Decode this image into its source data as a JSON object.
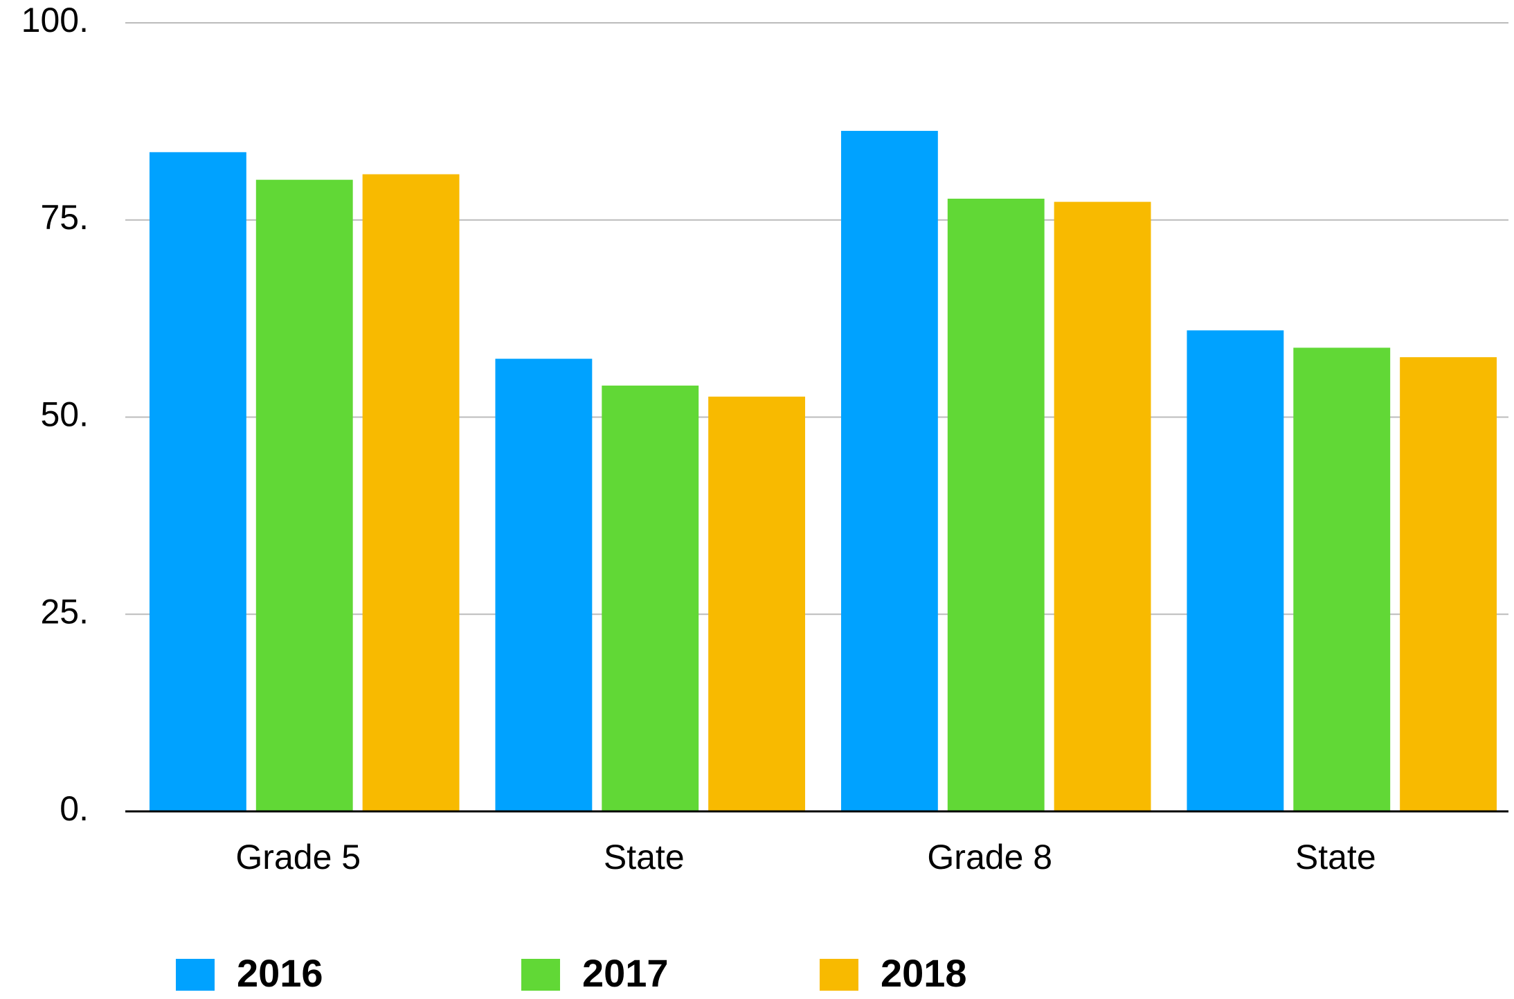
{
  "chart_data": {
    "type": "bar",
    "categories": [
      "Grade 5",
      "State",
      "Grade 8",
      "State"
    ],
    "series": [
      {
        "name": "2016",
        "color": "#00a2ff",
        "values": [
          83.6,
          57.4,
          86.3,
          61.0
        ]
      },
      {
        "name": "2017",
        "color": "#61d836",
        "values": [
          80.1,
          54.0,
          77.7,
          58.8
        ]
      },
      {
        "name": "2018",
        "color": "#f8ba00",
        "values": [
          80.8,
          52.6,
          77.3,
          57.6
        ]
      }
    ],
    "ylim": [
      0,
      100
    ],
    "yticks": [
      {
        "value": 0,
        "label": "0."
      },
      {
        "value": 25,
        "label": "25."
      },
      {
        "value": 50,
        "label": "50."
      },
      {
        "value": 75,
        "label": "75."
      },
      {
        "value": 100,
        "label": "100."
      }
    ],
    "grid": true,
    "legend": "bottom"
  }
}
